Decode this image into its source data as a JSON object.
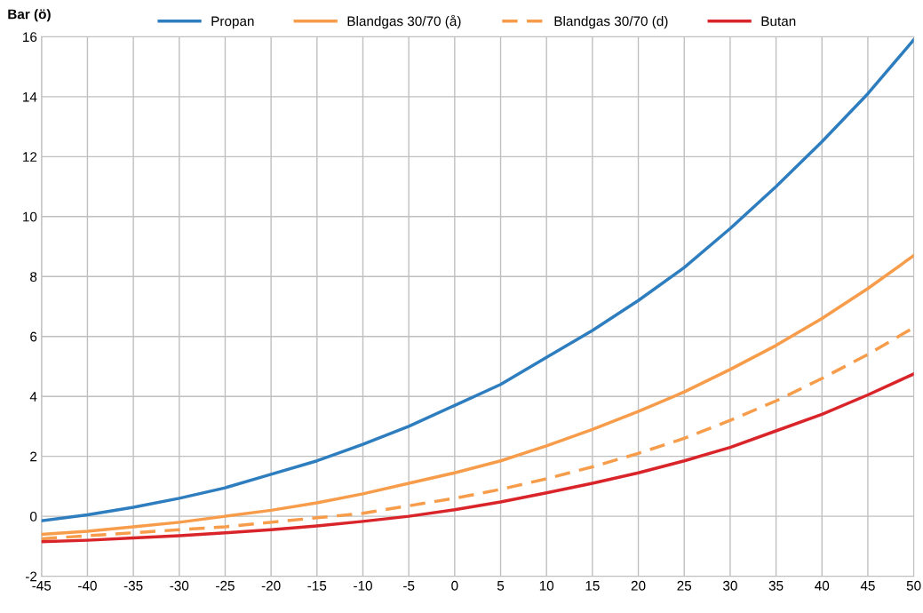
{
  "chart_data": {
    "type": "line",
    "ylabel": "Bar (ö)",
    "x": [
      -45,
      -40,
      -35,
      -30,
      -25,
      -20,
      -15,
      -10,
      -5,
      0,
      5,
      10,
      15,
      20,
      25,
      30,
      35,
      40,
      45,
      50
    ],
    "series": [
      {
        "name": "Propan",
        "color": "#2e7ebf",
        "line_style": "solid",
        "values": [
          -0.15,
          0.05,
          0.3,
          0.6,
          0.95,
          1.4,
          1.85,
          2.4,
          3.0,
          3.7,
          4.4,
          5.3,
          6.2,
          7.2,
          8.3,
          9.6,
          11.0,
          12.5,
          14.1,
          15.9
        ]
      },
      {
        "name": "Blandgas 30/70 (å)",
        "color": "#f79c4a",
        "line_style": "solid",
        "values": [
          -0.6,
          -0.5,
          -0.35,
          -0.2,
          0.0,
          0.2,
          0.45,
          0.75,
          1.1,
          1.45,
          1.85,
          2.35,
          2.9,
          3.5,
          4.15,
          4.9,
          5.7,
          6.6,
          7.6,
          8.7
        ]
      },
      {
        "name": "Blandgas 30/70 (d)",
        "color": "#f79c4a",
        "line_style": "dashed",
        "values": [
          -0.75,
          -0.65,
          -0.55,
          -0.45,
          -0.35,
          -0.2,
          -0.05,
          0.1,
          0.35,
          0.6,
          0.9,
          1.25,
          1.65,
          2.1,
          2.6,
          3.2,
          3.85,
          4.6,
          5.4,
          6.3
        ]
      },
      {
        "name": "Butan",
        "color": "#d9252a",
        "line_style": "solid",
        "values": [
          -0.85,
          -0.8,
          -0.72,
          -0.65,
          -0.55,
          -0.45,
          -0.32,
          -0.17,
          0.0,
          0.22,
          0.48,
          0.78,
          1.1,
          1.45,
          1.85,
          2.3,
          2.85,
          3.4,
          4.05,
          4.75
        ]
      }
    ],
    "xlim": [
      -45,
      50
    ],
    "xticks": [
      -45,
      -40,
      -35,
      -30,
      -25,
      -20,
      -15,
      -10,
      -5,
      0,
      5,
      10,
      15,
      20,
      25,
      30,
      35,
      40,
      45,
      50
    ],
    "ylim": [
      -2,
      16
    ],
    "yticks": [
      -2,
      0,
      2,
      4,
      6,
      8,
      10,
      12,
      14,
      16
    ],
    "grid": true,
    "legend": "top",
    "marker": "none"
  }
}
